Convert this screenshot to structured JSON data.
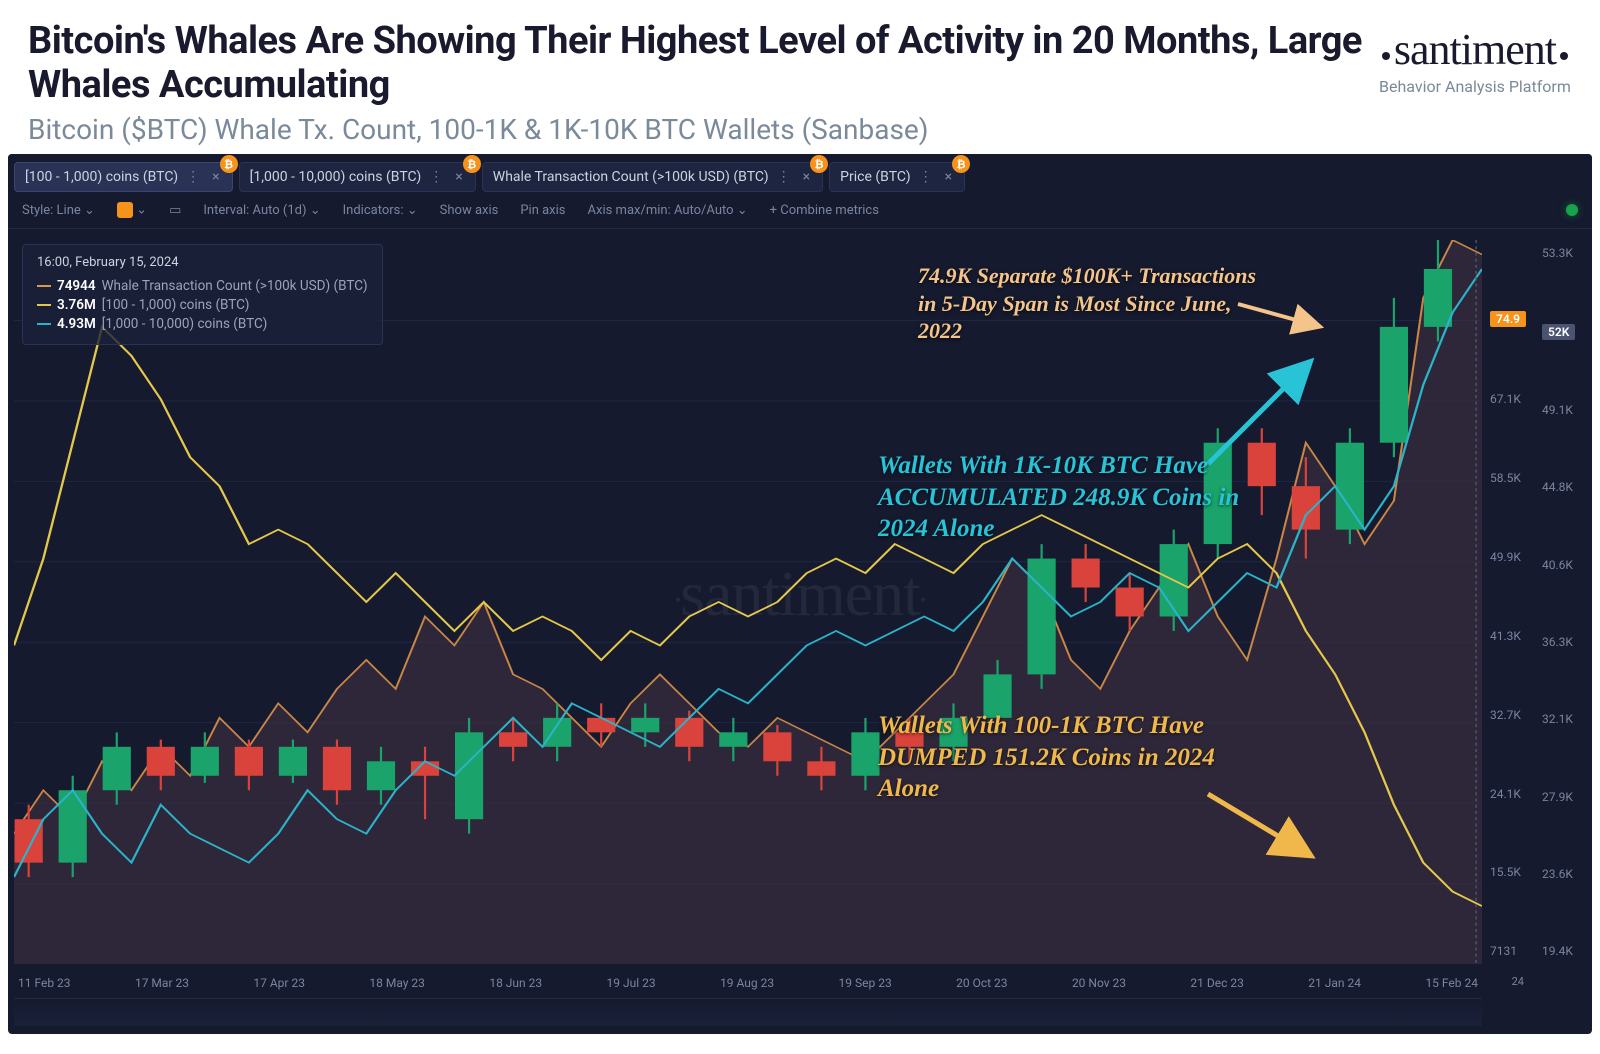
{
  "header": {
    "title": "Bitcoin's Whales Are Showing Their Highest Level of Activity in 20 Months, Large Whales Accumulating",
    "subtitle": "Bitcoin ($BTC) Whale Tx. Count, 100-1K & 1K-10K BTC Wallets (Sanbase)",
    "logo_text": "santiment",
    "logo_tag": "Behavior Analysis Platform",
    "title_color": "#1a1a2e",
    "subtitle_color": "#7a8a9a",
    "title_fontsize": 38,
    "subtitle_fontsize": 28
  },
  "tabs": [
    {
      "label": "[100 - 1,000) coins (BTC)",
      "active": true,
      "badge": "₿"
    },
    {
      "label": "[1,000 - 10,000) coins (BTC)",
      "active": false,
      "badge": "₿"
    },
    {
      "label": "Whale Transaction Count (>100k USD) (BTC)",
      "active": false,
      "badge": "₿"
    },
    {
      "label": "Price (BTC)",
      "active": false,
      "badge": "₿"
    }
  ],
  "toolbar": {
    "style": "Style: Line",
    "interval": "Interval: Auto (1d)",
    "indicators": "Indicators:",
    "show_axis": "Show axis",
    "pin_axis": "Pin axis",
    "axis": "Axis max/min: Auto/Auto",
    "combine": "+  Combine metrics"
  },
  "legend": {
    "timestamp": "16:00, February 15, 2024",
    "rows": [
      {
        "color": "#d99a4a",
        "val": "74944",
        "name": "Whale Transaction Count (>100k USD) (BTC)"
      },
      {
        "color": "#e5c84a",
        "val": "3.76M",
        "name": "[100 - 1,000) coins (BTC)"
      },
      {
        "color": "#2bb3c9",
        "val": "4.93M",
        "name": "[1,000 - 10,000) coins (BTC)"
      }
    ]
  },
  "annotations": {
    "peach": "74.9K Separate $100K+ Transactions in 5-Day Span is Most Since June, 2022",
    "cyan": "Wallets With 1K-10K BTC Have ACCUMULATED 248.9K  Coins in 2024 Alone",
    "gold": "Wallets With 100-1K BTC Have DUMPED 151.2K Coins in 2024 Alone"
  },
  "axes": {
    "right_inner_label_color": "#7a85a0",
    "right_inner": [
      "",
      "74.9K",
      "67.1K",
      "58.5K",
      "49.9K",
      "41.3K",
      "32.7K",
      "24.1K",
      "15.5K",
      "7131"
    ],
    "right_inner_badge": "74.9",
    "right_outer": [
      "53.3K",
      "52K",
      "49.1K",
      "44.8K",
      "40.6K",
      "36.3K",
      "32.1K",
      "27.9K",
      "23.6K",
      "19.4K"
    ],
    "right_outer_badge": "52K",
    "x": [
      "11 Feb 23",
      "17 Mar 23",
      "17 Apr 23",
      "18 May 23",
      "18 Jun 23",
      "19 Jul 23",
      "19 Aug 23",
      "19 Sep 23",
      "20 Oct 23",
      "20 Nov 23",
      "21 Dec 23",
      "21 Jan 24",
      "15 Feb 24"
    ]
  },
  "small_label_br": "24",
  "chart": {
    "type": "multi-line-with-candles",
    "background": "#151a2e",
    "grid_color": "#1f2744",
    "xlim": [
      0,
      100
    ],
    "ylim": [
      0,
      100
    ],
    "area_fill": "#3d3146",
    "series": {
      "yellow_line": {
        "color": "#e5c84a",
        "width": 1.6,
        "points": [
          [
            0,
            44
          ],
          [
            2,
            56
          ],
          [
            4,
            72
          ],
          [
            6,
            88
          ],
          [
            8,
            84
          ],
          [
            10,
            78
          ],
          [
            12,
            70
          ],
          [
            14,
            66
          ],
          [
            16,
            58
          ],
          [
            18,
            60
          ],
          [
            20,
            58
          ],
          [
            22,
            54
          ],
          [
            24,
            50
          ],
          [
            26,
            54
          ],
          [
            28,
            50
          ],
          [
            30,
            46
          ],
          [
            32,
            50
          ],
          [
            34,
            46
          ],
          [
            36,
            48
          ],
          [
            38,
            46
          ],
          [
            40,
            42
          ],
          [
            42,
            46
          ],
          [
            44,
            44
          ],
          [
            46,
            48
          ],
          [
            48,
            50
          ],
          [
            50,
            48
          ],
          [
            52,
            50
          ],
          [
            54,
            54
          ],
          [
            56,
            56
          ],
          [
            58,
            54
          ],
          [
            60,
            58
          ],
          [
            62,
            56
          ],
          [
            64,
            54
          ],
          [
            66,
            58
          ],
          [
            68,
            60
          ],
          [
            70,
            62
          ],
          [
            72,
            60
          ],
          [
            74,
            58
          ],
          [
            76,
            56
          ],
          [
            78,
            54
          ],
          [
            80,
            52
          ],
          [
            82,
            56
          ],
          [
            84,
            58
          ],
          [
            86,
            54
          ],
          [
            88,
            46
          ],
          [
            90,
            40
          ],
          [
            92,
            32
          ],
          [
            94,
            22
          ],
          [
            96,
            14
          ],
          [
            98,
            10
          ],
          [
            100,
            8
          ]
        ]
      },
      "cyan_line": {
        "color": "#2bb3c9",
        "width": 1.6,
        "points": [
          [
            0,
            12
          ],
          [
            2,
            20
          ],
          [
            4,
            24
          ],
          [
            6,
            18
          ],
          [
            8,
            14
          ],
          [
            10,
            22
          ],
          [
            12,
            18
          ],
          [
            14,
            16
          ],
          [
            16,
            14
          ],
          [
            18,
            18
          ],
          [
            20,
            24
          ],
          [
            22,
            20
          ],
          [
            24,
            18
          ],
          [
            26,
            24
          ],
          [
            28,
            28
          ],
          [
            30,
            26
          ],
          [
            32,
            30
          ],
          [
            34,
            34
          ],
          [
            36,
            30
          ],
          [
            38,
            36
          ],
          [
            40,
            34
          ],
          [
            42,
            32
          ],
          [
            44,
            30
          ],
          [
            46,
            34
          ],
          [
            48,
            38
          ],
          [
            50,
            36
          ],
          [
            52,
            40
          ],
          [
            54,
            44
          ],
          [
            56,
            46
          ],
          [
            58,
            44
          ],
          [
            60,
            46
          ],
          [
            62,
            48
          ],
          [
            64,
            46
          ],
          [
            66,
            50
          ],
          [
            68,
            56
          ],
          [
            70,
            52
          ],
          [
            72,
            48
          ],
          [
            74,
            50
          ],
          [
            76,
            54
          ],
          [
            78,
            52
          ],
          [
            80,
            46
          ],
          [
            82,
            50
          ],
          [
            84,
            54
          ],
          [
            86,
            52
          ],
          [
            88,
            62
          ],
          [
            90,
            66
          ],
          [
            92,
            60
          ],
          [
            94,
            66
          ],
          [
            96,
            80
          ],
          [
            98,
            90
          ],
          [
            100,
            96
          ]
        ]
      },
      "whale_area": {
        "color": "#c98646",
        "fill": "#3b2e3faa",
        "points": [
          [
            0,
            18
          ],
          [
            2,
            24
          ],
          [
            4,
            20
          ],
          [
            6,
            28
          ],
          [
            8,
            24
          ],
          [
            10,
            30
          ],
          [
            12,
            26
          ],
          [
            14,
            34
          ],
          [
            16,
            30
          ],
          [
            18,
            36
          ],
          [
            20,
            32
          ],
          [
            22,
            38
          ],
          [
            24,
            42
          ],
          [
            26,
            38
          ],
          [
            28,
            48
          ],
          [
            30,
            44
          ],
          [
            32,
            50
          ],
          [
            34,
            40
          ],
          [
            36,
            38
          ],
          [
            38,
            34
          ],
          [
            40,
            30
          ],
          [
            42,
            36
          ],
          [
            44,
            40
          ],
          [
            46,
            36
          ],
          [
            48,
            32
          ],
          [
            50,
            30
          ],
          [
            52,
            34
          ],
          [
            54,
            32
          ],
          [
            56,
            30
          ],
          [
            58,
            28
          ],
          [
            60,
            32
          ],
          [
            62,
            36
          ],
          [
            64,
            40
          ],
          [
            66,
            48
          ],
          [
            68,
            56
          ],
          [
            70,
            52
          ],
          [
            72,
            42
          ],
          [
            74,
            38
          ],
          [
            76,
            46
          ],
          [
            78,
            52
          ],
          [
            80,
            58
          ],
          [
            82,
            48
          ],
          [
            84,
            42
          ],
          [
            86,
            56
          ],
          [
            88,
            72
          ],
          [
            90,
            66
          ],
          [
            92,
            58
          ],
          [
            94,
            64
          ],
          [
            96,
            92
          ],
          [
            98,
            100
          ],
          [
            100,
            98
          ]
        ]
      }
    },
    "candles": {
      "up_color": "#1aa36b",
      "down_color": "#d9433b",
      "width": 1.6,
      "data": [
        {
          "x": 1,
          "o": 20,
          "c": 14,
          "h": 22,
          "l": 12
        },
        {
          "x": 4,
          "o": 14,
          "c": 24,
          "h": 26,
          "l": 12
        },
        {
          "x": 7,
          "o": 24,
          "c": 30,
          "h": 32,
          "l": 22
        },
        {
          "x": 10,
          "o": 30,
          "c": 26,
          "h": 31,
          "l": 24
        },
        {
          "x": 13,
          "o": 26,
          "c": 30,
          "h": 32,
          "l": 25
        },
        {
          "x": 16,
          "o": 30,
          "c": 26,
          "h": 31,
          "l": 24
        },
        {
          "x": 19,
          "o": 26,
          "c": 30,
          "h": 31,
          "l": 25
        },
        {
          "x": 22,
          "o": 30,
          "c": 24,
          "h": 31,
          "l": 22
        },
        {
          "x": 25,
          "o": 24,
          "c": 28,
          "h": 30,
          "l": 22
        },
        {
          "x": 28,
          "o": 28,
          "c": 26,
          "h": 30,
          "l": 20
        },
        {
          "x": 31,
          "o": 20,
          "c": 32,
          "h": 34,
          "l": 18
        },
        {
          "x": 34,
          "o": 32,
          "c": 30,
          "h": 34,
          "l": 28
        },
        {
          "x": 37,
          "o": 30,
          "c": 34,
          "h": 36,
          "l": 28
        },
        {
          "x": 40,
          "o": 34,
          "c": 32,
          "h": 36,
          "l": 30
        },
        {
          "x": 43,
          "o": 32,
          "c": 34,
          "h": 36,
          "l": 30
        },
        {
          "x": 46,
          "o": 34,
          "c": 30,
          "h": 35,
          "l": 28
        },
        {
          "x": 49,
          "o": 30,
          "c": 32,
          "h": 34,
          "l": 28
        },
        {
          "x": 52,
          "o": 32,
          "c": 28,
          "h": 33,
          "l": 26
        },
        {
          "x": 55,
          "o": 28,
          "c": 26,
          "h": 30,
          "l": 24
        },
        {
          "x": 58,
          "o": 26,
          "c": 32,
          "h": 34,
          "l": 24
        },
        {
          "x": 61,
          "o": 32,
          "c": 30,
          "h": 34,
          "l": 28
        },
        {
          "x": 64,
          "o": 30,
          "c": 34,
          "h": 36,
          "l": 28
        },
        {
          "x": 67,
          "o": 34,
          "c": 40,
          "h": 42,
          "l": 32
        },
        {
          "x": 70,
          "o": 40,
          "c": 56,
          "h": 58,
          "l": 38
        },
        {
          "x": 73,
          "o": 56,
          "c": 52,
          "h": 58,
          "l": 50
        },
        {
          "x": 76,
          "o": 52,
          "c": 48,
          "h": 54,
          "l": 46
        },
        {
          "x": 79,
          "o": 48,
          "c": 58,
          "h": 60,
          "l": 46
        },
        {
          "x": 82,
          "o": 58,
          "c": 72,
          "h": 74,
          "l": 56
        },
        {
          "x": 85,
          "o": 72,
          "c": 66,
          "h": 74,
          "l": 62
        },
        {
          "x": 88,
          "o": 66,
          "c": 60,
          "h": 70,
          "l": 56
        },
        {
          "x": 91,
          "o": 60,
          "c": 72,
          "h": 74,
          "l": 58
        },
        {
          "x": 94,
          "o": 72,
          "c": 88,
          "h": 92,
          "l": 70
        },
        {
          "x": 97,
          "o": 88,
          "c": 96,
          "h": 100,
          "l": 86
        }
      ]
    }
  },
  "watermark": "santiment"
}
